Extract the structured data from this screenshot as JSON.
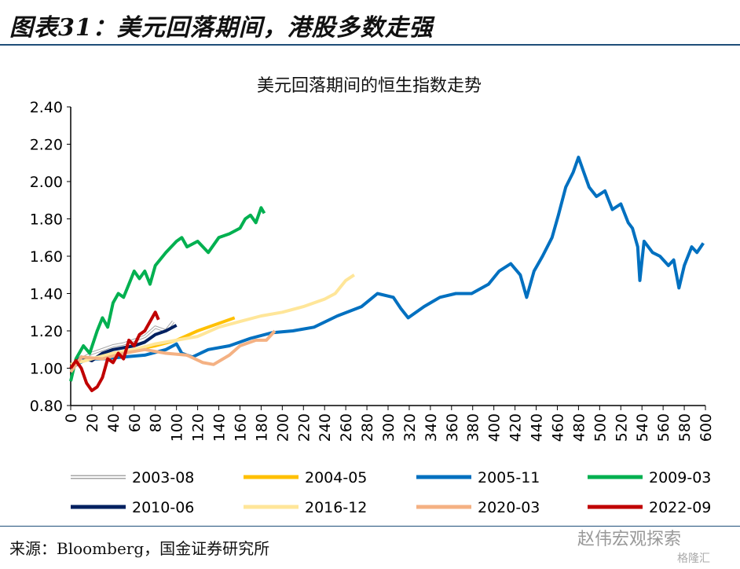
{
  "figure_title": "图表31：美元回落期间，港股多数走强",
  "source": "来源：Bloomberg，国金证券研究所",
  "watermark": "赵伟宏观探索",
  "watermark2": "格隆汇",
  "chart_data": {
    "type": "line",
    "title": "美元回落期间的恒生指数走势",
    "xlabel": "",
    "ylabel": "",
    "xlim": [
      0,
      600
    ],
    "ylim": [
      0.8,
      2.4
    ],
    "xticks": [
      0,
      20,
      40,
      60,
      80,
      100,
      120,
      140,
      160,
      180,
      200,
      220,
      240,
      260,
      280,
      300,
      320,
      340,
      360,
      380,
      400,
      420,
      440,
      460,
      480,
      500,
      520,
      540,
      560,
      580,
      600
    ],
    "yticks": [
      "0.80",
      "1.00",
      "1.20",
      "1.40",
      "1.60",
      "1.80",
      "2.00",
      "2.20",
      "2.40"
    ],
    "legend": "bottom",
    "series": [
      {
        "name": "2003-08",
        "color": "#a6a6a6",
        "outline": true,
        "points": [
          [
            0,
            1.0
          ],
          [
            10,
            1.05
          ],
          [
            20,
            1.08
          ],
          [
            30,
            1.1
          ],
          [
            40,
            1.12
          ],
          [
            50,
            1.13
          ],
          [
            60,
            1.15
          ],
          [
            70,
            1.17
          ],
          [
            80,
            1.22
          ],
          [
            90,
            1.2
          ],
          [
            97,
            1.25
          ]
        ]
      },
      {
        "name": "2004-05",
        "color": "#ffc000",
        "points": [
          [
            0,
            1.02
          ],
          [
            20,
            1.05
          ],
          [
            40,
            1.07
          ],
          [
            60,
            1.1
          ],
          [
            80,
            1.12
          ],
          [
            100,
            1.15
          ],
          [
            120,
            1.2
          ],
          [
            140,
            1.24
          ],
          [
            155,
            1.27
          ]
        ]
      },
      {
        "name": "2005-11",
        "color": "#0070c0",
        "points": [
          [
            0,
            1.0
          ],
          [
            15,
            1.05
          ],
          [
            30,
            1.05
          ],
          [
            50,
            1.06
          ],
          [
            70,
            1.07
          ],
          [
            90,
            1.1
          ],
          [
            100,
            1.13
          ],
          [
            105,
            1.08
          ],
          [
            115,
            1.06
          ],
          [
            130,
            1.1
          ],
          [
            150,
            1.12
          ],
          [
            170,
            1.16
          ],
          [
            190,
            1.19
          ],
          [
            210,
            1.2
          ],
          [
            230,
            1.22
          ],
          [
            252,
            1.28
          ],
          [
            275,
            1.33
          ],
          [
            290,
            1.4
          ],
          [
            305,
            1.38
          ],
          [
            312,
            1.32
          ],
          [
            319,
            1.27
          ],
          [
            334,
            1.33
          ],
          [
            349,
            1.38
          ],
          [
            364,
            1.4
          ],
          [
            379,
            1.4
          ],
          [
            395,
            1.45
          ],
          [
            405,
            1.52
          ],
          [
            416,
            1.56
          ],
          [
            425,
            1.5
          ],
          [
            431,
            1.38
          ],
          [
            438,
            1.52
          ],
          [
            446,
            1.6
          ],
          [
            455,
            1.7
          ],
          [
            461,
            1.82
          ],
          [
            468,
            1.97
          ],
          [
            475,
            2.05
          ],
          [
            480,
            2.13
          ],
          [
            485,
            2.05
          ],
          [
            490,
            1.97
          ],
          [
            497,
            1.92
          ],
          [
            505,
            1.95
          ],
          [
            512,
            1.85
          ],
          [
            520,
            1.88
          ],
          [
            527,
            1.78
          ],
          [
            531,
            1.75
          ],
          [
            536,
            1.65
          ],
          [
            538,
            1.47
          ],
          [
            542,
            1.68
          ],
          [
            550,
            1.62
          ],
          [
            557,
            1.6
          ],
          [
            565,
            1.55
          ],
          [
            570,
            1.58
          ],
          [
            575,
            1.43
          ],
          [
            580,
            1.55
          ],
          [
            587,
            1.65
          ],
          [
            592,
            1.62
          ],
          [
            598,
            1.67
          ]
        ]
      },
      {
        "name": "2009-03",
        "color": "#00b050",
        "points": [
          [
            0,
            0.93
          ],
          [
            5,
            1.05
          ],
          [
            12,
            1.12
          ],
          [
            18,
            1.08
          ],
          [
            25,
            1.2
          ],
          [
            30,
            1.27
          ],
          [
            35,
            1.22
          ],
          [
            40,
            1.35
          ],
          [
            45,
            1.4
          ],
          [
            50,
            1.38
          ],
          [
            55,
            1.45
          ],
          [
            60,
            1.52
          ],
          [
            65,
            1.48
          ],
          [
            70,
            1.52
          ],
          [
            75,
            1.45
          ],
          [
            80,
            1.55
          ],
          [
            90,
            1.62
          ],
          [
            100,
            1.68
          ],
          [
            105,
            1.7
          ],
          [
            110,
            1.65
          ],
          [
            120,
            1.68
          ],
          [
            130,
            1.62
          ],
          [
            140,
            1.7
          ],
          [
            150,
            1.72
          ],
          [
            160,
            1.75
          ],
          [
            165,
            1.8
          ],
          [
            170,
            1.82
          ],
          [
            175,
            1.78
          ],
          [
            180,
            1.86
          ],
          [
            183,
            1.83
          ]
        ]
      },
      {
        "name": "2010-06",
        "color": "#002060",
        "points": [
          [
            0,
            1.0
          ],
          [
            10,
            1.06
          ],
          [
            20,
            1.04
          ],
          [
            30,
            1.08
          ],
          [
            40,
            1.1
          ],
          [
            60,
            1.12
          ],
          [
            70,
            1.14
          ],
          [
            80,
            1.18
          ],
          [
            90,
            1.2
          ],
          [
            100,
            1.23
          ]
        ]
      },
      {
        "name": "2016-12",
        "color": "#ffe699",
        "points": [
          [
            0,
            1.02
          ],
          [
            20,
            1.05
          ],
          [
            40,
            1.08
          ],
          [
            60,
            1.1
          ],
          [
            80,
            1.13
          ],
          [
            100,
            1.15
          ],
          [
            120,
            1.17
          ],
          [
            140,
            1.22
          ],
          [
            160,
            1.25
          ],
          [
            180,
            1.28
          ],
          [
            200,
            1.3
          ],
          [
            220,
            1.33
          ],
          [
            240,
            1.37
          ],
          [
            250,
            1.4
          ],
          [
            260,
            1.47
          ],
          [
            268,
            1.5
          ]
        ]
      },
      {
        "name": "2020-03",
        "color": "#f4b183",
        "points": [
          [
            0,
            0.98
          ],
          [
            10,
            1.06
          ],
          [
            30,
            1.05
          ],
          [
            50,
            1.08
          ],
          [
            70,
            1.1
          ],
          [
            90,
            1.08
          ],
          [
            110,
            1.07
          ],
          [
            125,
            1.03
          ],
          [
            135,
            1.02
          ],
          [
            150,
            1.07
          ],
          [
            160,
            1.12
          ],
          [
            175,
            1.15
          ],
          [
            185,
            1.15
          ],
          [
            193,
            1.2
          ]
        ]
      },
      {
        "name": "2022-09",
        "color": "#c00000",
        "points": [
          [
            0,
            1.0
          ],
          [
            5,
            1.04
          ],
          [
            10,
            1.0
          ],
          [
            15,
            0.92
          ],
          [
            20,
            0.88
          ],
          [
            25,
            0.9
          ],
          [
            30,
            0.95
          ],
          [
            35,
            1.05
          ],
          [
            40,
            1.03
          ],
          [
            45,
            1.08
          ],
          [
            50,
            1.05
          ],
          [
            55,
            1.15
          ],
          [
            60,
            1.12
          ],
          [
            65,
            1.18
          ],
          [
            70,
            1.2
          ],
          [
            75,
            1.25
          ],
          [
            80,
            1.3
          ],
          [
            83,
            1.26
          ]
        ]
      }
    ]
  }
}
